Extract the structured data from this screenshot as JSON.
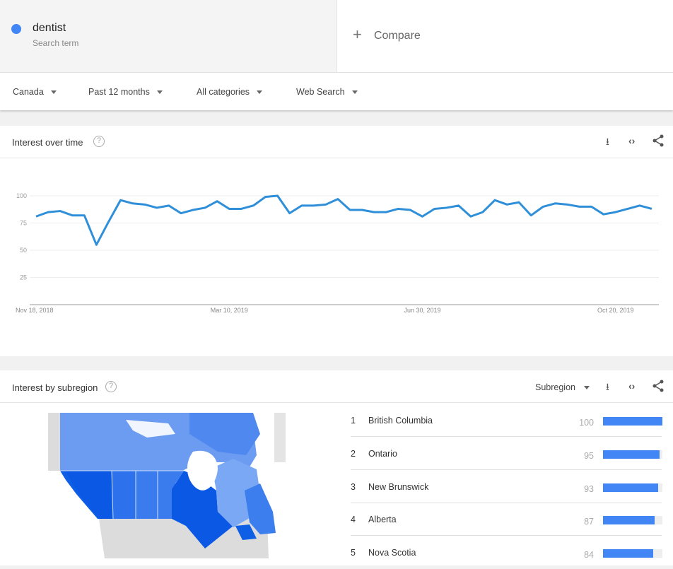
{
  "search_term": {
    "name": "dentist",
    "subtitle": "Search term",
    "color": "#4285f4"
  },
  "compare": {
    "icon": "plus-icon",
    "label": "Compare"
  },
  "filters": [
    {
      "label": "Canada"
    },
    {
      "label": "Past 12 months"
    },
    {
      "label": "All categories"
    },
    {
      "label": "Web Search"
    }
  ],
  "interest_over_time": {
    "title": "Interest over time",
    "help": "?",
    "icons": [
      "download-icon",
      "embed-icon",
      "share-icon"
    ]
  },
  "chart_data": {
    "type": "line",
    "title": "",
    "xlabel": "",
    "ylabel": "",
    "ylim": [
      0,
      100
    ],
    "yticks": [
      25,
      50,
      75,
      100
    ],
    "xtick_labels": [
      {
        "index": 0,
        "label": "Nov 18, 2018"
      },
      {
        "index": 16,
        "label": "Mar 10, 2019"
      },
      {
        "index": 32,
        "label": "Jun 30, 2019"
      },
      {
        "index": 48,
        "label": "Oct 20, 2019"
      }
    ],
    "grid": true,
    "color": "#2f8fd8",
    "values": [
      81,
      85,
      86,
      82,
      82,
      55,
      76,
      96,
      93,
      92,
      89,
      91,
      84,
      87,
      89,
      95,
      88,
      88,
      91,
      99,
      100,
      84,
      91,
      91,
      92,
      97,
      87,
      87,
      85,
      85,
      88,
      87,
      81,
      88,
      89,
      91,
      81,
      85,
      96,
      92,
      94,
      82,
      90,
      93,
      92,
      90,
      90,
      83,
      85,
      88,
      91,
      88
    ]
  },
  "interest_by_subregion": {
    "title": "Interest by subregion",
    "help": "?",
    "selector": "Subregion",
    "icons": [
      "download-icon",
      "embed-icon",
      "share-icon"
    ],
    "rows": [
      {
        "rank": "1",
        "name": "British Columbia",
        "value": 100
      },
      {
        "rank": "2",
        "name": "Ontario",
        "value": 95
      },
      {
        "rank": "3",
        "name": "New Brunswick",
        "value": 93
      },
      {
        "rank": "4",
        "name": "Alberta",
        "value": 87
      },
      {
        "rank": "5",
        "name": "Nova Scotia",
        "value": 84
      }
    ]
  }
}
